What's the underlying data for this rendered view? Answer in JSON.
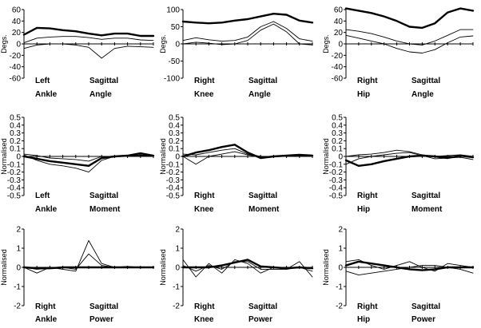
{
  "chart_data": [
    {
      "type": "line",
      "caption": {
        "side": "Left",
        "joint": "Ankle",
        "plane": "Sagittal",
        "quantity": "Angle"
      },
      "ylabel": "Degs.",
      "ylim": [
        -60,
        60
      ],
      "yticks": [
        "60",
        "40",
        "20",
        "0",
        "-20",
        "-40",
        "-60"
      ],
      "yticks_values": [
        60,
        40,
        20,
        0,
        -20,
        -40,
        -60
      ],
      "x": [
        0,
        10,
        20,
        30,
        40,
        50,
        60,
        70,
        80,
        90,
        100
      ],
      "series": [
        {
          "style": "thick",
          "values": [
            16,
            28,
            27,
            24,
            22,
            18,
            15,
            18,
            18,
            14,
            14
          ]
        },
        {
          "style": "thin",
          "values": [
            2,
            10,
            12,
            13,
            13,
            11,
            8,
            10,
            10,
            7,
            6
          ]
        },
        {
          "style": "thin",
          "values": [
            -8,
            -2,
            0,
            0,
            -2,
            -6,
            -25,
            -8,
            -4,
            -5,
            -6
          ]
        },
        {
          "style": "ref",
          "values": [
            0,
            0,
            0,
            0,
            0,
            0,
            0,
            0,
            0,
            0,
            0
          ]
        }
      ]
    },
    {
      "type": "line",
      "caption": {
        "side": "Right",
        "joint": "Knee",
        "plane": "Sagittal",
        "quantity": "Angle"
      },
      "ylabel": "Degs.",
      "ylim": [
        -100,
        100
      ],
      "yticks": [
        "100",
        "50",
        "0",
        "-50",
        "-100"
      ],
      "yticks_values": [
        100,
        50,
        0,
        -50,
        -100
      ],
      "x": [
        0,
        10,
        20,
        30,
        40,
        50,
        60,
        70,
        80,
        90,
        100
      ],
      "series": [
        {
          "style": "thick",
          "values": [
            65,
            62,
            60,
            62,
            68,
            72,
            80,
            88,
            85,
            68,
            62
          ]
        },
        {
          "style": "thin",
          "values": [
            10,
            18,
            12,
            8,
            10,
            20,
            50,
            65,
            45,
            15,
            8
          ]
        },
        {
          "style": "thin",
          "values": [
            0,
            5,
            2,
            -2,
            0,
            10,
            40,
            58,
            35,
            0,
            -3
          ]
        },
        {
          "style": "ref",
          "values": [
            0,
            0,
            0,
            0,
            0,
            0,
            0,
            0,
            0,
            0,
            0
          ]
        }
      ]
    },
    {
      "type": "line",
      "caption": {
        "side": "Right",
        "joint": "Hip",
        "plane": "Sagittal",
        "quantity": "Angle"
      },
      "ylabel": "Degs.",
      "ylim": [
        -60,
        60
      ],
      "yticks": [
        "60",
        "40",
        "20",
        "0",
        "-20",
        "-40",
        "-60"
      ],
      "yticks_values": [
        60,
        40,
        20,
        0,
        -20,
        -40,
        -60
      ],
      "x": [
        0,
        10,
        20,
        30,
        40,
        50,
        60,
        70,
        80,
        90,
        100
      ],
      "series": [
        {
          "style": "thick",
          "values": [
            62,
            58,
            54,
            48,
            40,
            30,
            28,
            36,
            55,
            62,
            58
          ]
        },
        {
          "style": "thin",
          "values": [
            25,
            22,
            18,
            12,
            5,
            0,
            -2,
            5,
            15,
            25,
            25
          ]
        },
        {
          "style": "thin",
          "values": [
            15,
            10,
            5,
            0,
            -8,
            -14,
            -16,
            -10,
            2,
            12,
            14
          ]
        },
        {
          "style": "ref",
          "values": [
            0,
            0,
            0,
            0,
            0,
            0,
            0,
            0,
            0,
            0,
            0
          ]
        }
      ]
    },
    {
      "type": "line",
      "caption": {
        "side": "Left",
        "joint": "Ankle",
        "plane": "Sagittal",
        "quantity": "Moment"
      },
      "ylabel": "Normalised",
      "ylim": [
        -0.5,
        0.5
      ],
      "yticks": [
        "0.5",
        "0.4",
        "0.3",
        "0.2",
        "0.1",
        "0",
        "-0.1",
        "-0.2",
        "-0.3",
        "-0.4",
        "-0.5"
      ],
      "yticks_values": [
        0.5,
        0.4,
        0.3,
        0.2,
        0.1,
        0,
        -0.1,
        -0.2,
        -0.3,
        -0.4,
        -0.5
      ],
      "x": [
        0,
        10,
        20,
        30,
        40,
        50,
        60,
        70,
        80,
        90,
        100
      ],
      "series": [
        {
          "style": "thick",
          "values": [
            0,
            -0.03,
            -0.06,
            -0.08,
            -0.1,
            -0.12,
            -0.02,
            0,
            0.01,
            0.04,
            0.01
          ]
        },
        {
          "style": "thin",
          "values": [
            0.02,
            -0.05,
            -0.1,
            -0.12,
            -0.15,
            -0.2,
            -0.05,
            0,
            0,
            0.02,
            0
          ]
        },
        {
          "style": "thin",
          "values": [
            0.03,
            0.01,
            -0.02,
            -0.03,
            -0.04,
            -0.06,
            0,
            0,
            0,
            0.01,
            0
          ]
        },
        {
          "style": "ref",
          "values": [
            0,
            0,
            0,
            0,
            0,
            0,
            0,
            0,
            0,
            0,
            0
          ]
        }
      ]
    },
    {
      "type": "line",
      "caption": {
        "side": "Right",
        "joint": "Knee",
        "plane": "Sagittal",
        "quantity": "Moment"
      },
      "ylabel": "Normalised",
      "ylim": [
        -0.5,
        0.5
      ],
      "yticks": [
        "0.5",
        "0.4",
        "0.3",
        "0.2",
        "0.1",
        "0",
        "-0.1",
        "-0.2",
        "-0.3",
        "-0.4",
        "-0.5"
      ],
      "yticks_values": [
        0.5,
        0.4,
        0.3,
        0.2,
        0.1,
        0,
        -0.1,
        -0.2,
        -0.3,
        -0.4,
        -0.5
      ],
      "x": [
        0,
        10,
        20,
        30,
        40,
        50,
        60,
        70,
        80,
        90,
        100
      ],
      "series": [
        {
          "style": "thick",
          "values": [
            0,
            0.05,
            0.08,
            0.12,
            0.15,
            0.05,
            -0.02,
            0,
            0.01,
            0.02,
            0.01
          ]
        },
        {
          "style": "thin",
          "values": [
            0,
            -0.1,
            0,
            0.03,
            0.06,
            0.02,
            -0.01,
            0,
            0,
            0.01,
            0
          ]
        },
        {
          "style": "thin",
          "values": [
            0.03,
            0.02,
            0.05,
            0.08,
            0.1,
            0.03,
            0,
            0,
            0,
            0.02,
            0.01
          ]
        },
        {
          "style": "ref",
          "values": [
            0,
            0,
            0,
            0,
            0,
            0,
            0,
            0,
            0,
            0,
            0
          ]
        }
      ]
    },
    {
      "type": "line",
      "caption": {
        "side": "Right",
        "joint": "Hip",
        "plane": "Sagittal",
        "quantity": "Moment"
      },
      "ylabel": "Normalised",
      "ylim": [
        -0.5,
        0.5
      ],
      "yticks": [
        "0.5",
        "0.4",
        "0.3",
        "0.2",
        "0.1",
        "0",
        "-0.1",
        "-0.2",
        "-0.3",
        "-0.4",
        "-0.5"
      ],
      "yticks_values": [
        0.5,
        0.4,
        0.3,
        0.2,
        0.1,
        0,
        -0.1,
        -0.2,
        -0.3,
        -0.4,
        -0.5
      ],
      "x": [
        0,
        10,
        20,
        30,
        40,
        50,
        60,
        70,
        80,
        90,
        100
      ],
      "series": [
        {
          "style": "thick",
          "values": [
            -0.05,
            -0.12,
            -0.1,
            -0.06,
            -0.03,
            0,
            0.01,
            0,
            -0.02,
            0.01,
            -0.01
          ]
        },
        {
          "style": "thin",
          "values": [
            0,
            0.02,
            0.03,
            0.05,
            0.08,
            0.06,
            0.02,
            0,
            0.01,
            0.02,
            0
          ]
        },
        {
          "style": "thin",
          "values": [
            -0.1,
            -0.03,
            0,
            0.02,
            0.04,
            0.05,
            0.01,
            -0.03,
            -0.02,
            -0.01,
            -0.04
          ]
        },
        {
          "style": "ref",
          "values": [
            0,
            0,
            0,
            0,
            0,
            0,
            0,
            0,
            0,
            0,
            0
          ]
        }
      ]
    },
    {
      "type": "line",
      "caption": {
        "side": "Right",
        "joint": "Ankle",
        "plane": "Sagittal",
        "quantity": "Power"
      },
      "ylabel": "Normalised",
      "ylim": [
        -2,
        2
      ],
      "yticks": [
        "2",
        "1",
        "0",
        "-1",
        "-2"
      ],
      "yticks_values": [
        2,
        1,
        0,
        -1,
        -2
      ],
      "x": [
        0,
        10,
        20,
        30,
        40,
        50,
        60,
        70,
        80,
        90,
        100
      ],
      "series": [
        {
          "style": "thick",
          "values": [
            0,
            -0.05,
            -0.05,
            0,
            0,
            0,
            0,
            0,
            0,
            0,
            0
          ]
        },
        {
          "style": "thin",
          "values": [
            0,
            -0.3,
            0,
            -0.1,
            -0.2,
            1.4,
            0.2,
            0,
            0.05,
            0,
            0
          ]
        },
        {
          "style": "thin",
          "values": [
            0,
            -0.1,
            -0.05,
            0,
            -0.1,
            0.7,
            0.1,
            0,
            0,
            0,
            0
          ]
        },
        {
          "style": "ref",
          "values": [
            0,
            0,
            0,
            0,
            0,
            0,
            0,
            0,
            0,
            0,
            0
          ]
        }
      ]
    },
    {
      "type": "line",
      "caption": {
        "side": "Right",
        "joint": "Knee",
        "plane": "Sagittal",
        "quantity": "Power"
      },
      "ylabel": "Normalised",
      "ylim": [
        -2,
        2
      ],
      "yticks": [
        "2",
        "1",
        "0",
        "-1",
        "-2"
      ],
      "yticks_values": [
        2,
        1,
        0,
        -1,
        -2
      ],
      "x": [
        0,
        10,
        20,
        30,
        40,
        50,
        60,
        70,
        80,
        90,
        100
      ],
      "series": [
        {
          "style": "thick",
          "values": [
            0,
            0,
            0,
            0.1,
            0.25,
            0.4,
            0.05,
            0,
            -0.05,
            0,
            -0.05
          ]
        },
        {
          "style": "thin",
          "values": [
            0.4,
            -0.5,
            0.2,
            -0.3,
            0.4,
            0.2,
            -0.3,
            0,
            -0.1,
            0.3,
            -0.5
          ]
        },
        {
          "style": "thin",
          "values": [
            0.1,
            -0.2,
            0.1,
            -0.1,
            0.3,
            0.3,
            -0.1,
            -0.1,
            -0.1,
            0,
            -0.2
          ]
        },
        {
          "style": "ref",
          "values": [
            0,
            0,
            0,
            0,
            0,
            0,
            0,
            0,
            0,
            0,
            0
          ]
        }
      ]
    },
    {
      "type": "line",
      "caption": {
        "side": "Right",
        "joint": "Hip",
        "plane": "Sagittal",
        "quantity": "Power"
      },
      "ylabel": "Normalised",
      "ylim": [
        -2,
        2
      ],
      "yticks": [
        "2",
        "1",
        "0",
        "-1",
        "-2"
      ],
      "yticks_values": [
        2,
        1,
        0,
        -1,
        -2
      ],
      "x": [
        0,
        10,
        20,
        30,
        40,
        50,
        60,
        70,
        80,
        90,
        100
      ],
      "series": [
        {
          "style": "thick",
          "values": [
            0.1,
            0.3,
            0.2,
            0.1,
            0,
            -0.1,
            -0.15,
            -0.1,
            0,
            0,
            0
          ]
        },
        {
          "style": "thin",
          "values": [
            0.3,
            0.4,
            0.1,
            -0.1,
            0.1,
            0.3,
            0,
            -0.2,
            0.2,
            0.1,
            0
          ]
        },
        {
          "style": "thin",
          "values": [
            -0.2,
            -0.4,
            -0.3,
            -0.2,
            -0.1,
            0,
            0.1,
            0.1,
            0,
            -0.1,
            -0.3
          ]
        },
        {
          "style": "ref",
          "values": [
            0,
            0,
            0,
            0,
            0,
            0,
            0,
            0,
            0,
            0,
            0
          ]
        }
      ]
    }
  ]
}
